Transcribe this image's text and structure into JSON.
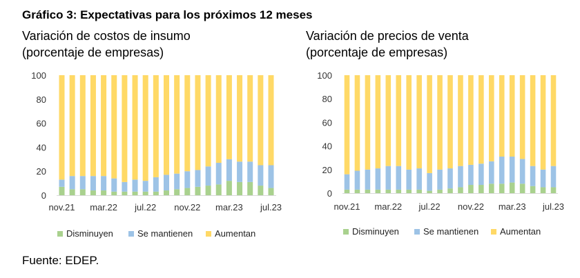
{
  "title": "Gráfico 3: Expectativas para los próximos 12 meses",
  "source": "Fuente: EDEP.",
  "colors": {
    "disminuyen": "#a9d18e",
    "mantienen": "#9dc3e6",
    "aumentan": "#ffd966"
  },
  "chart_data": [
    {
      "type": "bar",
      "stacked": true,
      "title": "Variación de costos de insumo",
      "subtitle": "(porcentaje de empresas)",
      "xlabel": "",
      "ylabel": "",
      "ylim": [
        0,
        100
      ],
      "yticks": [
        "0",
        "20",
        "40",
        "60",
        "80",
        "100"
      ],
      "x_tick_labels": [
        "nov.21",
        "mar.22",
        "jul.22",
        "nov.22",
        "mar.23",
        "jul.23"
      ],
      "x_tick_indices": [
        0,
        4,
        8,
        12,
        16,
        20
      ],
      "categories": [
        "nov.21",
        "dic.21",
        "ene.22",
        "feb.22",
        "mar.22",
        "abr.22",
        "may.22",
        "jun.22",
        "jul.22",
        "ago.22",
        "sep.22",
        "oct.22",
        "nov.22",
        "dic.22",
        "ene.23",
        "feb.23",
        "mar.23",
        "abr.23",
        "may.23",
        "jun.23",
        "jul.23"
      ],
      "legend_position": "bottom",
      "series": [
        {
          "name": "Disminuyen",
          "values": [
            7,
            5,
            5,
            4,
            4,
            3,
            3,
            3,
            3,
            3,
            4,
            5,
            6,
            7,
            8,
            9,
            12,
            11,
            11,
            8,
            6
          ]
        },
        {
          "name": "Se mantienen",
          "values": [
            6,
            11,
            11,
            12,
            12,
            11,
            8,
            10,
            9,
            12,
            13,
            13,
            14,
            14,
            16,
            18,
            18,
            17,
            17,
            17,
            19
          ]
        },
        {
          "name": "Aumentan",
          "values": [
            87,
            84,
            84,
            84,
            84,
            86,
            89,
            87,
            88,
            85,
            83,
            82,
            80,
            79,
            76,
            73,
            70,
            72,
            72,
            75,
            75
          ]
        }
      ]
    },
    {
      "type": "bar",
      "stacked": true,
      "title": "Variación de precios de venta",
      "subtitle": "(porcentaje de empresas)",
      "xlabel": "",
      "ylabel": "",
      "ylim": [
        0,
        100
      ],
      "yticks": [
        "0",
        "20",
        "40",
        "60",
        "80",
        "100"
      ],
      "x_tick_labels": [
        "nov.21",
        "mar.22",
        "jul.22",
        "nov.22",
        "mar.23",
        "jul.23"
      ],
      "x_tick_indices": [
        0,
        4,
        8,
        12,
        16,
        20
      ],
      "categories": [
        "nov.21",
        "dic.21",
        "ene.22",
        "feb.22",
        "mar.22",
        "abr.22",
        "may.22",
        "jun.22",
        "jul.22",
        "ago.22",
        "sep.22",
        "oct.22",
        "nov.22",
        "dic.22",
        "ene.23",
        "feb.23",
        "mar.23",
        "abr.23",
        "may.23",
        "jun.23",
        "jul.23"
      ],
      "legend_position": "bottom",
      "series": [
        {
          "name": "Disminuyen",
          "values": [
            3,
            3,
            3,
            3,
            3,
            3,
            3,
            3,
            2,
            3,
            4,
            5,
            7,
            7,
            8,
            8,
            9,
            8,
            6,
            5,
            5
          ]
        },
        {
          "name": "Se mantienen",
          "values": [
            13,
            16,
            17,
            18,
            20,
            20,
            17,
            18,
            15,
            17,
            17,
            18,
            17,
            18,
            19,
            23,
            22,
            21,
            17,
            15,
            18
          ]
        },
        {
          "name": "Aumentan",
          "values": [
            84,
            81,
            80,
            79,
            77,
            77,
            80,
            79,
            83,
            80,
            79,
            77,
            76,
            75,
            73,
            69,
            69,
            71,
            77,
            80,
            77
          ]
        }
      ]
    }
  ]
}
